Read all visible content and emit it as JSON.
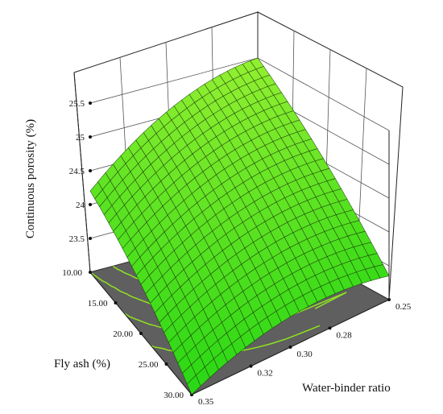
{
  "chart_data": {
    "type": "surface3d",
    "title": "",
    "zlabel": "Continuous porosity (%)",
    "xlabel": "Water-binder ratio",
    "ylabel": "Fly ash (%)",
    "x_ticks": [
      "0.25",
      "0.28",
      "0.30",
      "0.32",
      "0.35"
    ],
    "y_ticks": [
      "10.00",
      "15.00",
      "20.00",
      "25.00",
      "30.00"
    ],
    "z_ticks": [
      "23.5",
      "24",
      "24.5",
      "25",
      "25.5"
    ],
    "xlim": [
      0.25,
      0.35
    ],
    "ylim": [
      10,
      30
    ],
    "zlim": [
      23.0,
      25.5
    ],
    "surface_corners": [
      {
        "water_binder": 0.35,
        "fly_ash": 10,
        "porosity": 24.2
      },
      {
        "water_binder": 0.25,
        "fly_ash": 10,
        "porosity": 25.5
      },
      {
        "water_binder": 0.25,
        "fly_ash": 30,
        "porosity": 23.35
      },
      {
        "water_binder": 0.35,
        "fly_ash": 30,
        "porosity": 23.0
      }
    ],
    "surface_color": "#66e012",
    "floor_color": "#5f5f5f",
    "contour_color": "#8fe320",
    "grid": true
  }
}
